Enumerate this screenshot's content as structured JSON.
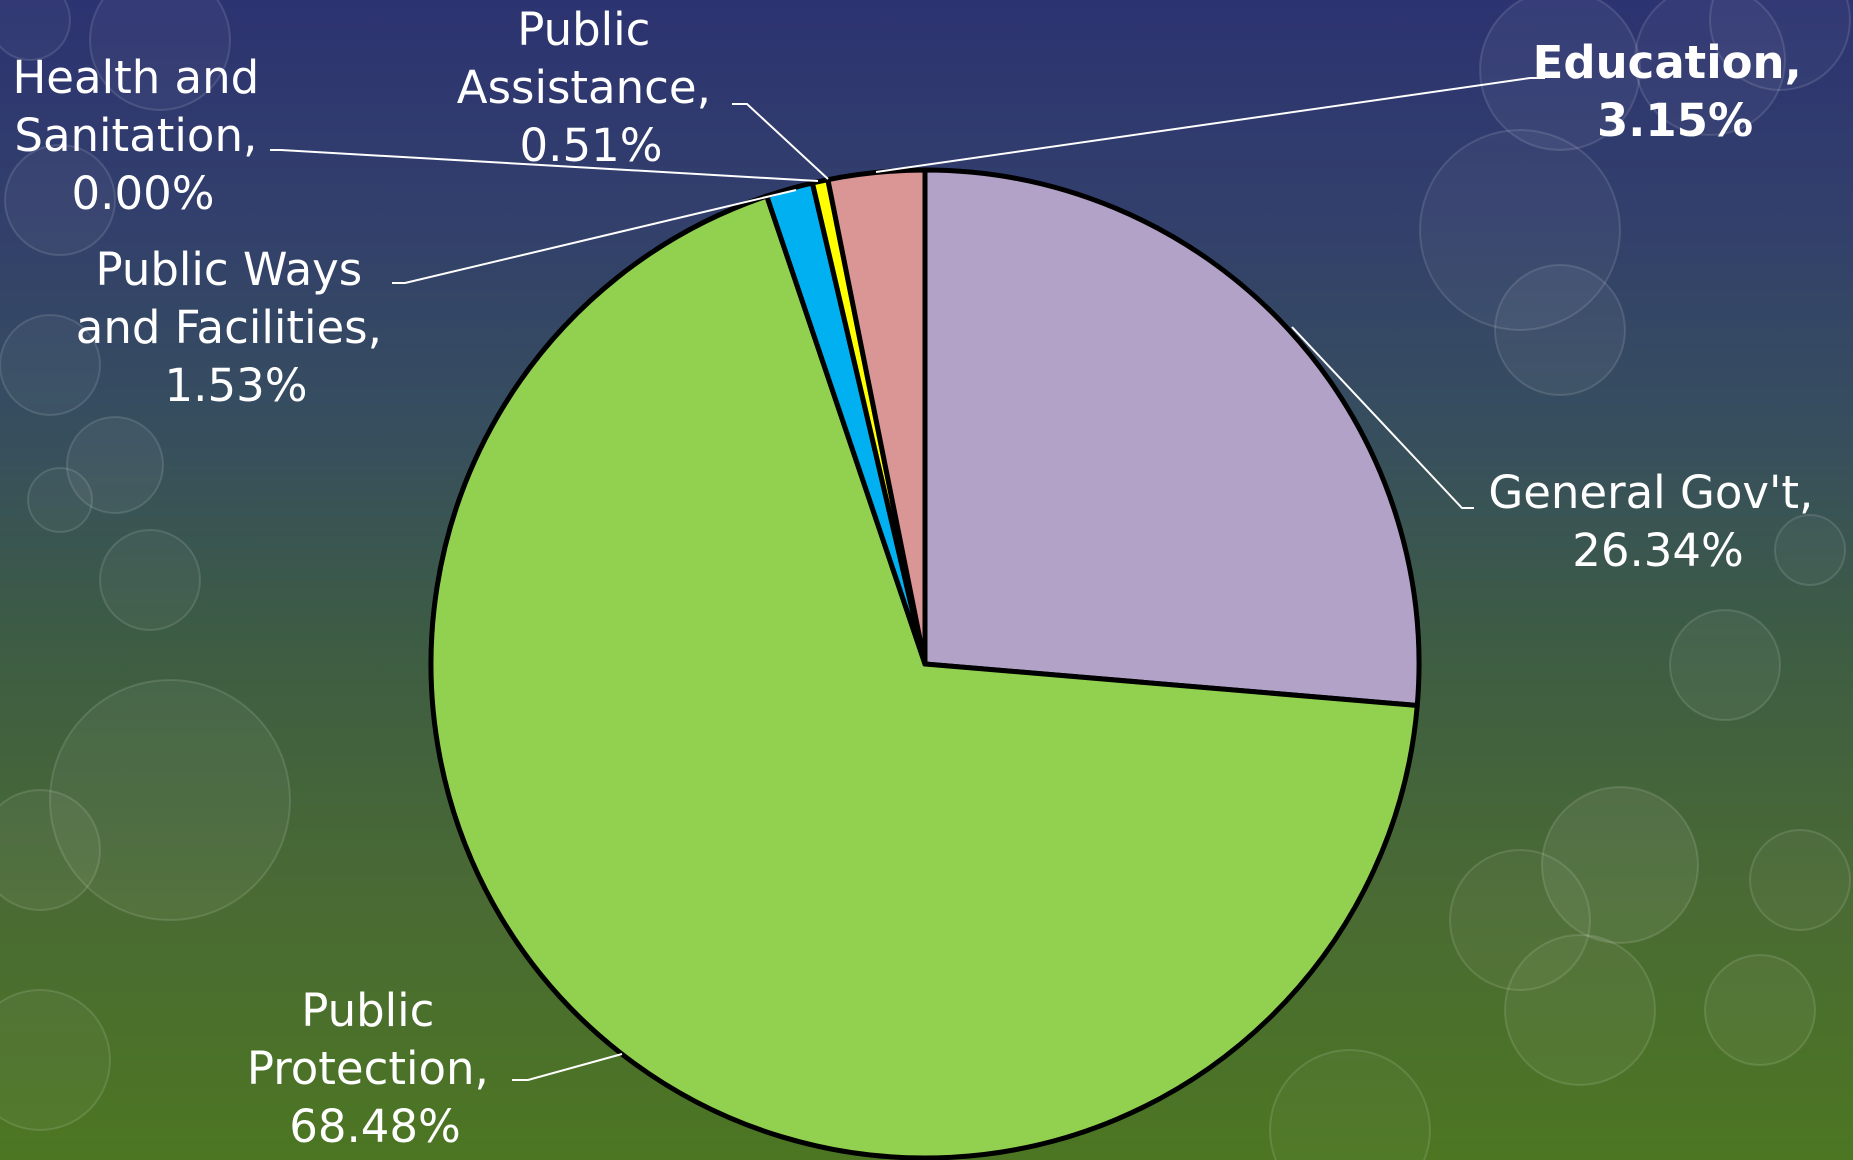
{
  "chart_data": {
    "type": "pie",
    "title": "",
    "start_angle_deg": 0,
    "direction": "clockwise",
    "slices": [
      {
        "label": "General Gov't",
        "value": 26.34,
        "display": "26.34%",
        "color": "#b2a2c7",
        "emphasized": false
      },
      {
        "label": "Public Protection",
        "value": 68.48,
        "display": "68.48%",
        "color": "#92d050",
        "emphasized": false
      },
      {
        "label": "Public Ways and Facilities",
        "value": 1.53,
        "display": "1.53%",
        "color": "#00b0f0",
        "emphasized": false
      },
      {
        "label": "Public Assistance",
        "value": 0.51,
        "display": "0.51%",
        "color": "#ffff00",
        "emphasized": false
      },
      {
        "label": "Health and Sanitation",
        "value": 0.0,
        "display": "0.00%",
        "color": "#ff0000",
        "emphasized": false
      },
      {
        "label": "Education",
        "value": 3.15,
        "display": "3.15%",
        "color": "#d99694",
        "emphasized": true
      }
    ],
    "outline_color": "#000000",
    "label_color": "#ffffff",
    "leader_line_color": "#ffffff"
  },
  "labels": {
    "general_govt": [
      "General Gov't,",
      "26.34%"
    ],
    "public_protection": [
      "Public",
      "Protection,",
      "68.48%"
    ],
    "public_ways": [
      "Public Ways",
      "and Facilities,",
      "1.53%"
    ],
    "public_assistance": [
      "Public",
      "Assistance,",
      "0.51%"
    ],
    "health_sanitation": [
      "Health and",
      "Sanitation,",
      "0.00%"
    ],
    "education": [
      "Education,",
      "3.15%"
    ]
  }
}
